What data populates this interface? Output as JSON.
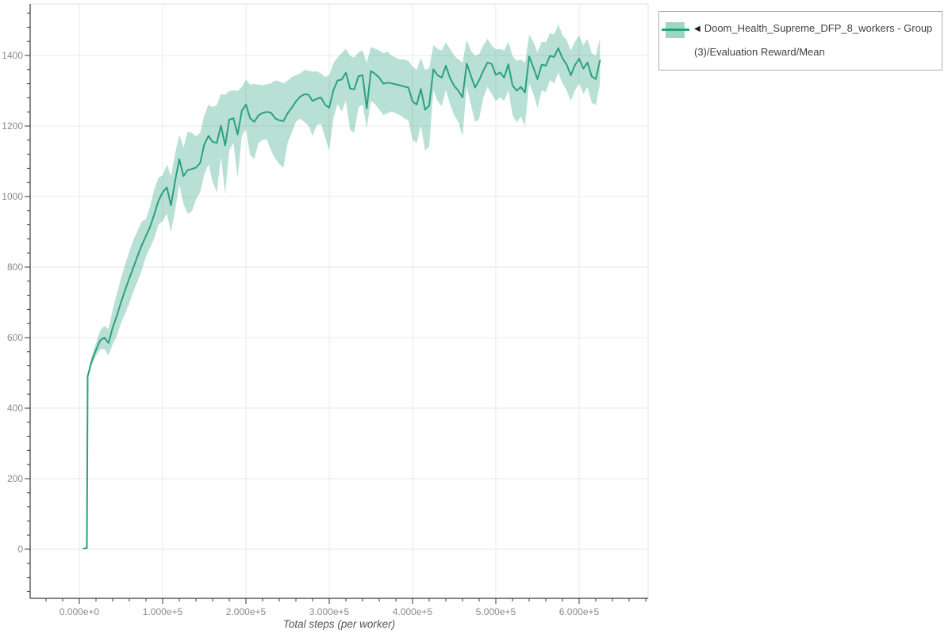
{
  "legend": {
    "collapse_icon": "◀",
    "series_label": "Doom_Health_Supreme_DFP_8_workers - Group(3)/Evaluation Reward/Mean"
  },
  "chart_data": {
    "type": "line",
    "title": "",
    "xlabel": "Total steps (per worker)",
    "ylabel": "",
    "grid": true,
    "legend_position": "top-right",
    "xlim": [
      -57000,
      685000
    ],
    "ylim": [
      -140,
      1547
    ],
    "x_ticks": {
      "values": [
        0,
        100000,
        200000,
        300000,
        400000,
        500000,
        600000
      ],
      "labels": [
        "0.000e+0",
        "1.000e+5",
        "2.000e+5",
        "3.000e+5",
        "4.000e+5",
        "5.000e+5",
        "6.000e+5"
      ],
      "minor_step": 20000
    },
    "y_ticks": {
      "values": [
        0,
        200,
        400,
        600,
        800,
        1000,
        1200,
        1400
      ],
      "labels": [
        "0",
        "200",
        "400",
        "600",
        "800",
        "1000",
        "1200",
        "1400"
      ],
      "minor_step": 40
    },
    "style": {
      "line_color": "#2aa17c",
      "band_color": "#2aa17c",
      "band_opacity": 0.33,
      "grid_color": "#e9e9e9",
      "border_color": "#e2e2e2",
      "axis_color": "#3a3a3a",
      "tick_label_color": "#8a8a8a"
    },
    "series": [
      {
        "name": "Doom_Health_Supreme_DFP_8_workers - Group(3)/Evaluation Reward/Mean",
        "x": [
          5000,
          9000,
          10000,
          15000,
          20000,
          25000,
          30000,
          35000,
          40000,
          45000,
          50000,
          55000,
          60000,
          65000,
          70000,
          75000,
          80000,
          85000,
          90000,
          95000,
          100000,
          105000,
          110000,
          115000,
          120000,
          125000,
          130000,
          135000,
          140000,
          145000,
          150000,
          155000,
          160000,
          165000,
          170000,
          175000,
          180000,
          185000,
          190000,
          195000,
          200000,
          205000,
          210000,
          215000,
          220000,
          225000,
          230000,
          235000,
          240000,
          245000,
          250000,
          255000,
          260000,
          265000,
          270000,
          275000,
          280000,
          285000,
          290000,
          295000,
          300000,
          305000,
          310000,
          315000,
          320000,
          325000,
          330000,
          335000,
          340000,
          345000,
          350000,
          355000,
          360000,
          365000,
          370000,
          375000,
          380000,
          385000,
          390000,
          395000,
          400000,
          405000,
          410000,
          415000,
          420000,
          425000,
          430000,
          435000,
          440000,
          445000,
          450000,
          455000,
          460000,
          465000,
          470000,
          475000,
          480000,
          485000,
          490000,
          495000,
          500000,
          505000,
          510000,
          515000,
          520000,
          525000,
          530000,
          535000,
          540000,
          545000,
          550000,
          555000,
          560000,
          565000,
          570000,
          575000,
          580000,
          585000,
          590000,
          595000,
          600000,
          605000,
          610000,
          615000,
          620000,
          625000
        ],
        "mean": [
          2,
          3,
          490,
          535,
          565,
          592,
          600,
          585,
          628,
          662,
          700,
          735,
          768,
          800,
          832,
          862,
          888,
          915,
          950,
          988,
          1012,
          1026,
          975,
          1045,
          1106,
          1058,
          1075,
          1078,
          1082,
          1095,
          1148,
          1172,
          1155,
          1152,
          1201,
          1145,
          1218,
          1222,
          1176,
          1243,
          1261,
          1222,
          1212,
          1230,
          1237,
          1240,
          1238,
          1222,
          1216,
          1214,
          1236,
          1252,
          1270,
          1283,
          1290,
          1289,
          1271,
          1277,
          1281,
          1260,
          1252,
          1302,
          1329,
          1332,
          1351,
          1306,
          1304,
          1341,
          1344,
          1250,
          1356,
          1348,
          1337,
          1320,
          1323,
          1321,
          1318,
          1315,
          1312,
          1309,
          1270,
          1261,
          1305,
          1246,
          1258,
          1361,
          1344,
          1337,
          1371,
          1336,
          1314,
          1300,
          1281,
          1377,
          1343,
          1309,
          1330,
          1357,
          1380,
          1376,
          1345,
          1352,
          1337,
          1375,
          1315,
          1300,
          1311,
          1295,
          1397,
          1366,
          1333,
          1374,
          1371,
          1399,
          1396,
          1421,
          1392,
          1374,
          1344,
          1373,
          1391,
          1363,
          1380,
          1341,
          1333,
          1386
        ],
        "lo": [
          2,
          3,
          482,
          522,
          548,
          566,
          568,
          549,
          581,
          604,
          641,
          668,
          697,
          731,
          761,
          791,
          830,
          856,
          882,
          921,
          930,
          951,
          899,
          962,
          1035,
          978,
          951,
          958,
          992,
          1012,
          1062,
          1092,
          1041,
          1012,
          1112,
          1008,
          1131,
          1152,
          1052,
          1172,
          1191,
          1118,
          1106,
          1152,
          1161,
          1162,
          1131,
          1108,
          1092,
          1082,
          1152,
          1181,
          1212,
          1221,
          1212,
          1201,
          1172,
          1202,
          1206,
          1168,
          1131,
          1222,
          1262,
          1241,
          1272,
          1188,
          1181,
          1252,
          1261,
          1195,
          1271,
          1262,
          1246,
          1231,
          1236,
          1241,
          1236,
          1231,
          1221,
          1216,
          1161,
          1151,
          1202,
          1131,
          1141,
          1301,
          1271,
          1256,
          1302,
          1261,
          1231,
          1211,
          1171,
          1311,
          1261,
          1211,
          1221,
          1281,
          1311,
          1291,
          1271,
          1281,
          1271,
          1301,
          1231,
          1211,
          1226,
          1201,
          1321,
          1291,
          1251,
          1301,
          1296,
          1331,
          1321,
          1351,
          1321,
          1301,
          1271,
          1301,
          1321,
          1291,
          1311,
          1266,
          1259,
          1321
        ],
        "hi": [
          2,
          3,
          498,
          549,
          584,
          620,
          634,
          624,
          679,
          724,
          768,
          808,
          844,
          878,
          904,
          930,
          936,
          973,
          1021,
          1054,
          1060,
          1091,
          1058,
          1122,
          1176,
          1139,
          1184,
          1181,
          1171,
          1181,
          1231,
          1261,
          1254,
          1259,
          1291,
          1288,
          1299,
          1301,
          1299,
          1311,
          1331,
          1318,
          1319,
          1317,
          1315,
          1319,
          1321,
          1329,
          1327,
          1321,
          1329,
          1339,
          1344,
          1349,
          1359,
          1357,
          1354,
          1355,
          1349,
          1339,
          1344,
          1379,
          1394,
          1407,
          1419,
          1399,
          1394,
          1409,
          1414,
          1379,
          1424,
          1419,
          1414,
          1407,
          1411,
          1399,
          1394,
          1389,
          1389,
          1384,
          1369,
          1359,
          1394,
          1359,
          1364,
          1429,
          1419,
          1414,
          1437,
          1419,
          1399,
          1389,
          1379,
          1444,
          1414,
          1399,
          1404,
          1429,
          1447,
          1429,
          1417,
          1419,
          1414,
          1439,
          1399,
          1384,
          1389,
          1379,
          1459,
          1439,
          1409,
          1439,
          1437,
          1464,
          1459,
          1489,
          1457,
          1444,
          1414,
          1439,
          1457,
          1429,
          1447,
          1407,
          1399,
          1449
        ]
      }
    ]
  }
}
